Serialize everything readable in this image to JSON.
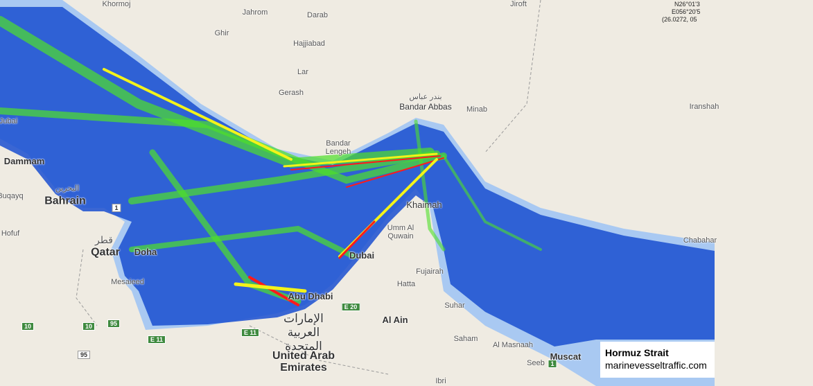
{
  "colors": {
    "land": "#efebe2",
    "water": "#a9c9f2",
    "traffic_low": "#1a4fd0",
    "traffic_mid": "#4ee02a",
    "traffic_high": "#f3f31a",
    "traffic_peak": "#ff1a1a"
  },
  "coordinates": {
    "lat": "N26°01'3",
    "lon": "E056°20'5",
    "decimal": "(26.0272, 05"
  },
  "caption": {
    "title": "Hormuz Strait",
    "site": "marinevesseltraffic.com"
  },
  "labels": {
    "khormoj": "Khormoj",
    "ghir": "Ghir",
    "jahrom": "Jahrom",
    "darab": "Darab",
    "jiroft": "Jiroft",
    "hajjiabad": "Hajjiabad",
    "lar": "Lar",
    "gerash": "Gerash",
    "bandar_abbas": "Bandar Abbas",
    "minab": "Minab",
    "iranshahr": "Iranshah",
    "bandar_lengeh": "Bandar Lengeh",
    "jubail": "Jubai",
    "dammam": "Dammam",
    "bahrain": "Bahrain",
    "buqayq": "Buqayq",
    "hofuf": "Hofuf",
    "qatar": "Qatar",
    "doha": "Doha",
    "mesaieed": "Mesaieed",
    "ras_al_khaimah": "Khaimah",
    "umm_al_quwain": "Umm Al Quwain",
    "dubai": "Dubai",
    "fujairah": "Fujairah",
    "hatta": "Hatta",
    "sohar": "Suhar",
    "al_ain": "Al Ain",
    "abu_dhabi": "Abu Dhabi",
    "uae": "United Arab Emirates",
    "uae_ar": "الإمارات العربية المتحدة",
    "saham": "Saham",
    "al_masnaah": "Al Masnaah",
    "seeb": "Seeb",
    "muscat": "Muscat",
    "ibri": "Ibri",
    "chabahar": "Chabahar",
    "bandar_abbas_ar": "بندر عباس",
    "qatar_ar": "قطر",
    "bahrain_ar": "البحرين"
  },
  "road_shields": [
    "95",
    "10",
    "10",
    "95",
    "E 11",
    "E 11",
    "E 20",
    "1",
    "1"
  ]
}
